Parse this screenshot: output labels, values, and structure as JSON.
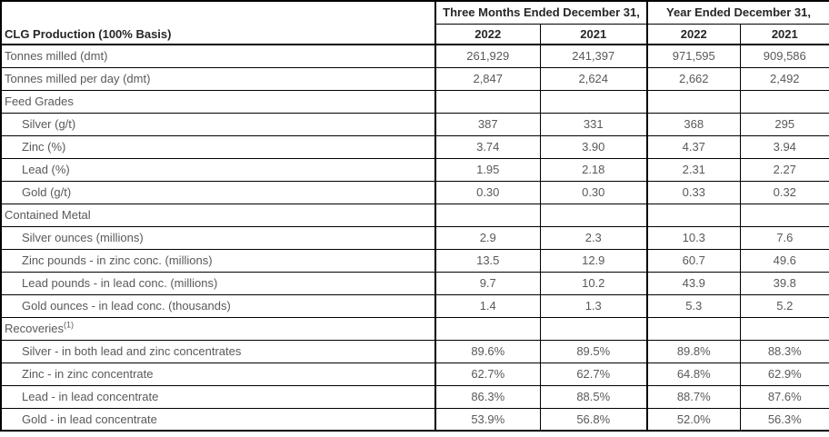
{
  "table": {
    "corner_label": "CLG Production (100% Basis)",
    "col_groups": [
      {
        "label": "Three Months Ended December 31,",
        "years": [
          "2022",
          "2021"
        ]
      },
      {
        "label": "Year Ended December 31,",
        "years": [
          "2022",
          "2021"
        ]
      }
    ],
    "rows": [
      {
        "label": "Tonnes milled (dmt)",
        "indent": false,
        "values": [
          "261,929",
          "241,397",
          "971,595",
          "909,586"
        ]
      },
      {
        "label": "Tonnes milled per day (dmt)",
        "indent": false,
        "values": [
          "2,847",
          "2,624",
          "2,662",
          "2,492"
        ]
      },
      {
        "label": "Feed Grades",
        "indent": false,
        "section": true,
        "values": [
          "",
          "",
          "",
          ""
        ]
      },
      {
        "label": "Silver (g/t)",
        "indent": true,
        "values": [
          "387",
          "331",
          "368",
          "295"
        ]
      },
      {
        "label": "Zinc (%)",
        "indent": true,
        "values": [
          "3.74",
          "3.90",
          "4.37",
          "3.94"
        ]
      },
      {
        "label": "Lead (%)",
        "indent": true,
        "values": [
          "1.95",
          "2.18",
          "2.31",
          "2.27"
        ]
      },
      {
        "label": "Gold (g/t)",
        "indent": true,
        "values": [
          "0.30",
          "0.30",
          "0.33",
          "0.32"
        ]
      },
      {
        "label": "Contained Metal",
        "indent": false,
        "section": true,
        "values": [
          "",
          "",
          "",
          ""
        ]
      },
      {
        "label": "Silver ounces (millions)",
        "indent": true,
        "values": [
          "2.9",
          "2.3",
          "10.3",
          "7.6"
        ]
      },
      {
        "label": "Zinc pounds - in zinc conc. (millions)",
        "indent": true,
        "values": [
          "13.5",
          "12.9",
          "60.7",
          "49.6"
        ]
      },
      {
        "label": "Lead pounds - in lead conc. (millions)",
        "indent": true,
        "values": [
          "9.7",
          "10.2",
          "43.9",
          "39.8"
        ]
      },
      {
        "label": "Gold ounces - in lead conc. (thousands)",
        "indent": true,
        "values": [
          "1.4",
          "1.3",
          "5.3",
          "5.2"
        ]
      },
      {
        "label": "Recoveries",
        "sup": "(1)",
        "indent": false,
        "section": true,
        "values": [
          "",
          "",
          "",
          ""
        ]
      },
      {
        "label": "Silver - in both lead and zinc concentrates",
        "indent": true,
        "values": [
          "89.6%",
          "89.5%",
          "89.8%",
          "88.3%"
        ]
      },
      {
        "label": "Zinc - in zinc concentrate",
        "indent": true,
        "values": [
          "62.7%",
          "62.7%",
          "64.8%",
          "62.9%"
        ]
      },
      {
        "label": "Lead - in lead concentrate",
        "indent": true,
        "values": [
          "86.3%",
          "88.5%",
          "88.7%",
          "87.6%"
        ]
      },
      {
        "label": "Gold - in lead concentrate",
        "indent": true,
        "values": [
          "53.9%",
          "56.8%",
          "52.0%",
          "56.3%"
        ]
      }
    ],
    "colors": {
      "border": "#000000",
      "header_text": "#262626",
      "data_text": "#595959",
      "background": "#ffffff"
    }
  }
}
